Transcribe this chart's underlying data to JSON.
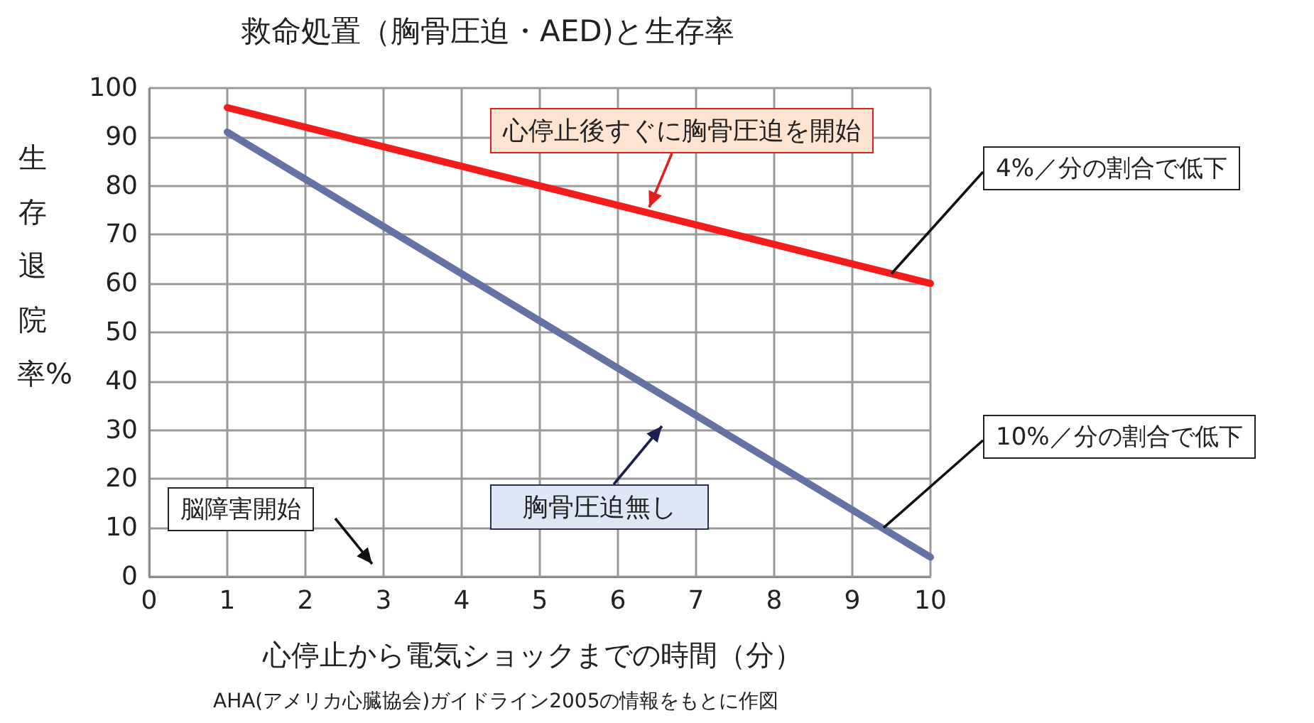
{
  "chart_data": {
    "type": "line",
    "title": "救命処置（胸骨圧迫・AED)と生存率",
    "xlabel": "心停止から電気ショックまでの時間（分）",
    "ylabel": "生存退院率%",
    "x": [
      1,
      10
    ],
    "series": [
      {
        "name": "心停止後すぐに胸骨圧迫を開始",
        "color": "#f21c1c",
        "values": [
          96,
          60
        ]
      },
      {
        "name": "胸骨圧迫無し",
        "color": "#6473a3",
        "values": [
          91,
          4
        ]
      }
    ],
    "xlim": [
      0,
      10
    ],
    "xticks": [
      0,
      1,
      2,
      3,
      4,
      5,
      6,
      7,
      8,
      9,
      10
    ],
    "ylim": [
      0,
      100
    ],
    "yticks": [
      0,
      10,
      20,
      30,
      40,
      50,
      60,
      70,
      80,
      90,
      100
    ],
    "grid": true,
    "legend": false,
    "marker": "none",
    "line_style": "solid",
    "annotations": [
      {
        "text": "4%／分の割合で低下",
        "x": 9.5,
        "y": 62
      },
      {
        "text": "10%／分の割合で低下",
        "x": 9.4,
        "y": 10
      },
      "脳障害開始",
      "AHA(アメリカ心臓協会)ガイドライン2005の情報をもとに作図"
    ]
  }
}
